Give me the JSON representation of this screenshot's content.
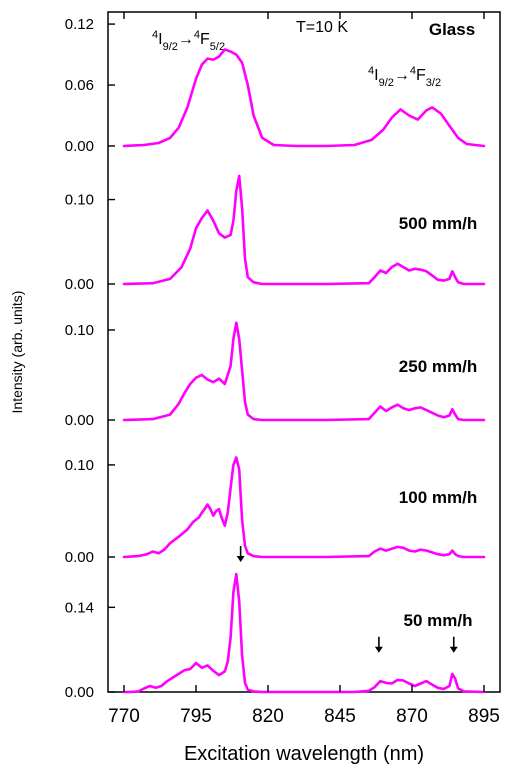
{
  "chart_data": {
    "type": "line",
    "xlabel": "Excitation wavelength (nm)",
    "ylabel": "Intensity (arb. units)",
    "xlim": [
      770,
      895
    ],
    "x_ticks": [
      "770",
      "795",
      "820",
      "845",
      "870",
      "895"
    ],
    "line_color": "#ff00ff",
    "annotations": {
      "temperature": "T=10 K",
      "transition_left": {
        "base": "4",
        "sub1": "9/2",
        "arrow": "→",
        "sup2": "4",
        "sub2": "5/2",
        "i": "I",
        "f": "F"
      },
      "transition_right": {
        "base": "4",
        "sub1": "9/2",
        "arrow": "→",
        "sup2": "4",
        "sub2": "3/2",
        "i": "I",
        "f": "F"
      }
    },
    "panels": [
      {
        "name": "Glass",
        "ylim": [
          0,
          0.125
        ],
        "y_ticks": [
          {
            "v": 0.12,
            "label": "0.12"
          },
          {
            "v": 0.06,
            "label": "0.06"
          },
          {
            "v": 0.0,
            "label": "0.00"
          }
        ],
        "x": [
          770,
          777,
          782,
          786,
          789,
          792,
          795,
          797,
          799,
          801,
          803,
          805,
          807,
          809,
          811,
          813,
          815,
          818,
          822,
          830,
          840,
          850,
          856,
          860,
          863,
          866,
          869,
          872,
          875,
          877,
          880,
          883,
          886,
          889,
          895
        ],
        "y": [
          0,
          0.001,
          0.003,
          0.008,
          0.018,
          0.038,
          0.066,
          0.08,
          0.086,
          0.085,
          0.088,
          0.095,
          0.093,
          0.09,
          0.082,
          0.06,
          0.03,
          0.008,
          0.001,
          0,
          0,
          0.001,
          0.006,
          0.016,
          0.028,
          0.036,
          0.03,
          0.026,
          0.035,
          0.038,
          0.032,
          0.02,
          0.008,
          0.002,
          0
        ]
      },
      {
        "name": "500 mm/h",
        "ylim": [
          0,
          0.135
        ],
        "y_ticks": [
          {
            "v": 0.1,
            "label": "0.10"
          },
          {
            "v": 0.0,
            "label": "0.00"
          }
        ],
        "x": [
          770,
          780,
          786,
          790,
          793,
          795,
          797,
          799,
          801,
          803,
          805,
          807,
          808,
          809,
          810,
          811,
          812,
          813,
          815,
          818,
          825,
          840,
          855,
          857,
          859,
          861,
          863,
          865,
          867,
          869,
          871,
          873,
          875,
          877,
          879,
          881,
          883,
          884,
          885,
          886,
          888,
          895
        ],
        "y": [
          0,
          0.001,
          0.006,
          0.02,
          0.042,
          0.066,
          0.078,
          0.087,
          0.075,
          0.06,
          0.055,
          0.058,
          0.075,
          0.11,
          0.128,
          0.09,
          0.03,
          0.008,
          0.002,
          0,
          0,
          0,
          0.001,
          0.008,
          0.016,
          0.013,
          0.02,
          0.024,
          0.02,
          0.016,
          0.018,
          0.017,
          0.015,
          0.01,
          0.005,
          0.004,
          0.006,
          0.015,
          0.008,
          0.002,
          0,
          0
        ]
      },
      {
        "name": "250 mm/h",
        "ylim": [
          0,
          0.12
        ],
        "y_ticks": [
          {
            "v": 0.1,
            "label": "0.10"
          },
          {
            "v": 0.0,
            "label": "0.00"
          }
        ],
        "x": [
          770,
          780,
          786,
          789,
          791,
          793,
          795,
          797,
          799,
          801,
          803,
          805,
          807,
          808,
          809,
          810,
          811,
          812,
          813,
          815,
          818,
          825,
          840,
          855,
          857,
          859,
          861,
          863,
          865,
          867,
          869,
          871,
          873,
          875,
          877,
          879,
          881,
          883,
          884,
          885,
          886,
          888,
          895
        ],
        "y": [
          0,
          0.001,
          0.006,
          0.018,
          0.03,
          0.04,
          0.047,
          0.05,
          0.045,
          0.042,
          0.046,
          0.04,
          0.06,
          0.09,
          0.108,
          0.09,
          0.055,
          0.02,
          0.006,
          0.001,
          0,
          0,
          0,
          0.001,
          0.008,
          0.015,
          0.01,
          0.014,
          0.017,
          0.013,
          0.011,
          0.013,
          0.014,
          0.011,
          0.008,
          0.005,
          0.003,
          0.005,
          0.012,
          0.006,
          0.001,
          0,
          0
        ]
      },
      {
        "name": "100 mm/h",
        "ylim": [
          0,
          0.114
        ],
        "y_ticks": [
          {
            "v": 0.1,
            "label": "0.10"
          },
          {
            "v": 0.0,
            "label": "0.00"
          }
        ],
        "x": [
          770,
          775,
          778,
          780,
          782,
          784,
          786,
          789,
          792,
          794,
          796,
          797,
          798,
          799,
          800,
          801,
          802,
          803,
          804,
          805,
          806,
          807,
          808,
          809,
          810,
          811,
          812,
          813,
          815,
          818,
          825,
          840,
          855,
          857,
          859,
          861,
          863,
          865,
          867,
          869,
          871,
          873,
          875,
          877,
          879,
          881,
          883,
          884,
          885,
          886,
          888,
          895
        ],
        "y": [
          0,
          0.001,
          0.003,
          0.006,
          0.004,
          0.008,
          0.015,
          0.022,
          0.03,
          0.038,
          0.043,
          0.048,
          0.052,
          0.057,
          0.052,
          0.045,
          0.05,
          0.052,
          0.042,
          0.034,
          0.048,
          0.075,
          0.1,
          0.108,
          0.095,
          0.04,
          0.012,
          0.004,
          0.001,
          0,
          0,
          0,
          0.001,
          0.006,
          0.009,
          0.007,
          0.009,
          0.011,
          0.01,
          0.007,
          0.006,
          0.008,
          0.007,
          0.005,
          0.003,
          0.002,
          0.003,
          0.007,
          0.003,
          0.001,
          0,
          0
        ]
      },
      {
        "name": "50 mm/h",
        "ylim": [
          0,
          0.215
        ],
        "y_ticks": [
          {
            "v": 0.14,
            "label": "0.14"
          },
          {
            "v": 0.0,
            "label": "0.00"
          }
        ],
        "x": [
          770,
          772,
          775,
          777,
          779,
          781,
          783,
          785,
          787,
          789,
          791,
          793,
          795,
          797,
          799,
          801,
          803,
          805,
          806,
          807,
          808,
          809,
          810,
          811,
          812,
          813,
          815,
          818,
          825,
          840,
          850,
          855,
          857,
          859,
          861,
          863,
          865,
          867,
          869,
          871,
          873,
          875,
          877,
          879,
          881,
          883,
          884,
          885,
          886,
          888,
          895
        ],
        "y": [
          0,
          0,
          0.001,
          0.006,
          0.01,
          0.007,
          0.01,
          0.018,
          0.024,
          0.03,
          0.036,
          0.038,
          0.048,
          0.04,
          0.044,
          0.035,
          0.028,
          0.034,
          0.05,
          0.09,
          0.165,
          0.195,
          0.15,
          0.06,
          0.015,
          0.004,
          0.001,
          0,
          0,
          0,
          0,
          0.002,
          0.008,
          0.018,
          0.015,
          0.014,
          0.02,
          0.019,
          0.014,
          0.01,
          0.014,
          0.018,
          0.012,
          0.007,
          0.005,
          0.01,
          0.03,
          0.022,
          0.006,
          0.001,
          0
        ]
      }
    ],
    "arrows": [
      {
        "panel": 4,
        "x": 810.5,
        "y": 0.205
      },
      {
        "panel": 4,
        "x": 858.5,
        "y": 0.055
      },
      {
        "panel": 4,
        "x": 884.5,
        "y": 0.055
      }
    ]
  }
}
